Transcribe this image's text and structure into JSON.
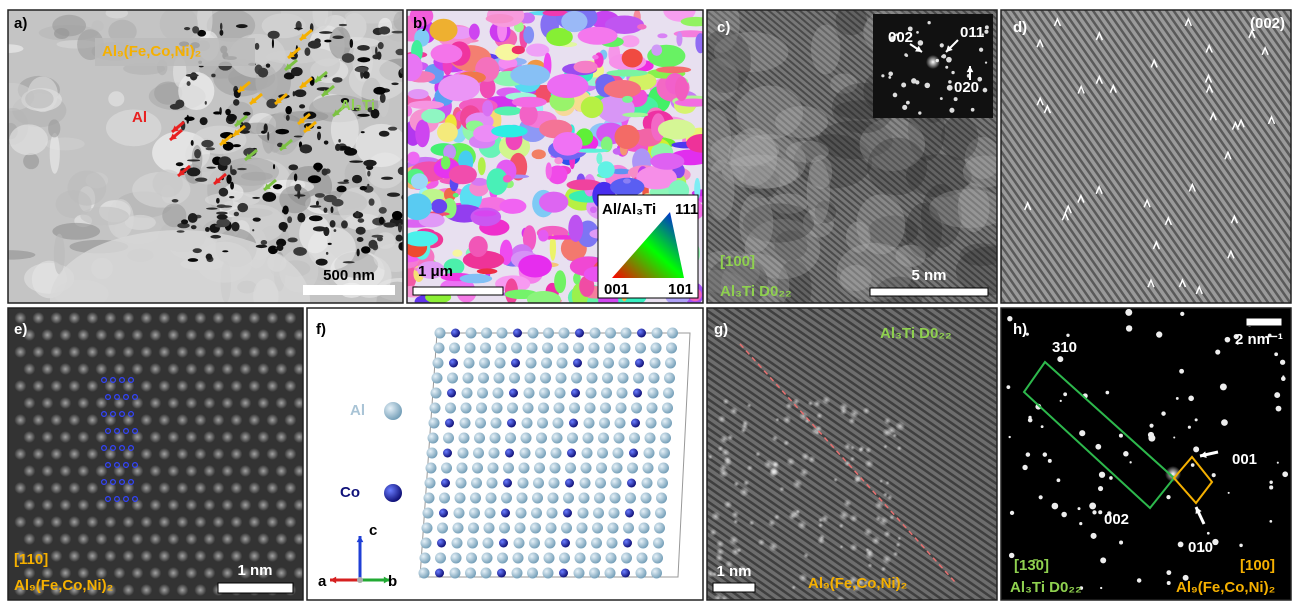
{
  "panels": {
    "a": {
      "label": "a)",
      "phase_top": "Al₉(Fe,Co,Ni)₂",
      "phase_right": "Al₃Ti",
      "phase_left": "Al",
      "scale_bar": "500 nm"
    },
    "b": {
      "label": "b)",
      "legend_title": "Al/Al₃Ti",
      "corner_top": "111",
      "corner_left": "001",
      "corner_right": "101",
      "scale_bar": "1 μm"
    },
    "c": {
      "label": "c)",
      "spot_1": "002",
      "spot_2": "011",
      "spot_3": "020",
      "zone_axis": "[100]",
      "phase": "Al₃Ti  D0₂₂",
      "scale_bar": "5 nm"
    },
    "d": {
      "label": "d)",
      "plane": "(002)"
    },
    "e": {
      "label": "e)",
      "zone_axis": "[110]",
      "phase": "Al₉(Fe,Co,Ni)₂",
      "scale_bar": "1 nm"
    },
    "f": {
      "label": "f)",
      "atom_1": "Al",
      "atom_2": "Co",
      "axis_a": "a",
      "axis_b": "b",
      "axis_c": "c"
    },
    "g": {
      "label": "g)",
      "phase_top": "Al₃Ti  D0₂₂",
      "scale_bar": "1 nm",
      "phase_bottom": "Al₉(Fe,Co,Ni)₂"
    },
    "h": {
      "label": "h)",
      "scale_bar": "2 nm⁻¹",
      "spot_1": "310",
      "spot_2": "001",
      "spot_3": "002",
      "spot_4": "010",
      "zone_axis_left": "[13̄0]",
      "zone_axis_right": "[100]",
      "phase_left": "Al₃Ti  D0₂₂",
      "phase_right": "Al₉(Fe,Co,Ni)₂"
    }
  }
}
